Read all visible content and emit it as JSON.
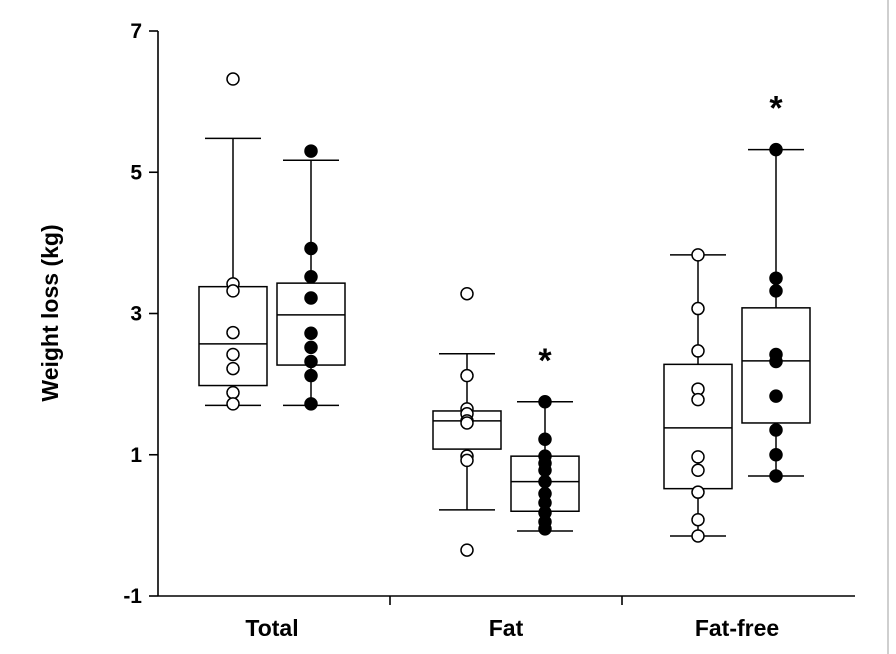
{
  "chart_data": {
    "type": "box",
    "title": "",
    "xlabel": "",
    "ylabel": "Weight loss (kg)",
    "ylim": [
      -1,
      7
    ],
    "yticks": [
      -1,
      1,
      3,
      5,
      7
    ],
    "categories": [
      "Total",
      "Fat",
      "Fat-free"
    ],
    "grid": false,
    "legend": "none",
    "groups": [
      {
        "category": "Total",
        "boxes": [
          {
            "marker": "open",
            "whisker_low": 1.7,
            "q1": 1.98,
            "median": 2.57,
            "q3": 3.38,
            "whisker_high": 5.48,
            "points": [
              6.32,
              3.42,
              3.32,
              2.73,
              2.42,
              2.22,
              1.88,
              1.72
            ],
            "annotation": ""
          },
          {
            "marker": "filled",
            "whisker_low": 1.7,
            "q1": 2.27,
            "median": 2.98,
            "q3": 3.43,
            "whisker_high": 5.17,
            "points": [
              5.3,
              3.92,
              3.52,
              3.22,
              2.72,
              2.52,
              2.32,
              2.12,
              1.72
            ],
            "annotation": ""
          }
        ]
      },
      {
        "category": "Fat",
        "boxes": [
          {
            "marker": "open",
            "whisker_low": 0.22,
            "q1": 1.08,
            "median": 1.48,
            "q3": 1.62,
            "whisker_high": 2.43,
            "points": [
              3.28,
              2.12,
              1.65,
              1.58,
              1.48,
              1.45,
              0.98,
              0.92,
              -0.35
            ],
            "annotation": ""
          },
          {
            "marker": "filled",
            "whisker_low": -0.08,
            "q1": 0.2,
            "median": 0.62,
            "q3": 0.98,
            "whisker_high": 1.75,
            "points": [
              1.75,
              1.22,
              0.98,
              0.88,
              0.78,
              0.62,
              0.45,
              0.32,
              0.18,
              0.05,
              -0.05
            ],
            "annotation": "*"
          }
        ]
      },
      {
        "category": "Fat-free",
        "boxes": [
          {
            "marker": "open",
            "whisker_low": -0.15,
            "q1": 0.52,
            "median": 1.38,
            "q3": 2.28,
            "whisker_high": 3.83,
            "points": [
              3.83,
              3.07,
              2.47,
              1.93,
              1.78,
              0.97,
              0.78,
              0.47,
              0.08,
              -0.15
            ],
            "annotation": ""
          },
          {
            "marker": "filled",
            "whisker_low": 0.7,
            "q1": 1.45,
            "median": 2.33,
            "q3": 3.08,
            "whisker_high": 5.32,
            "points": [
              5.32,
              3.5,
              3.32,
              2.42,
              2.32,
              1.83,
              1.35,
              1.0,
              0.7
            ],
            "annotation": "*"
          }
        ]
      }
    ]
  }
}
